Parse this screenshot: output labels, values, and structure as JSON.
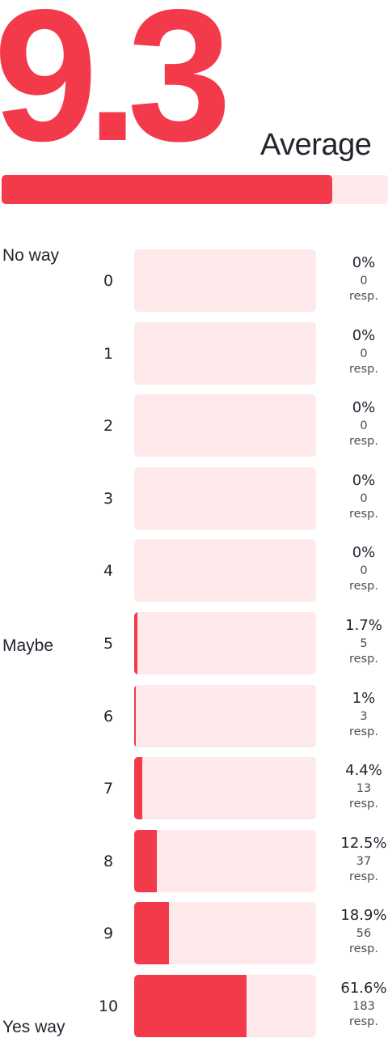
{
  "average": {
    "value": "9.3",
    "label": "Average",
    "fraction": 0.855
  },
  "anchors": {
    "low": "No way",
    "mid": "Maybe",
    "high": "Yes way"
  },
  "resp_suffix": "resp.",
  "colors": {
    "accent": "#f23a4a",
    "track": "#fde9ea",
    "text": "#23242f"
  },
  "chart_data": {
    "type": "bar",
    "orientation": "horizontal",
    "title": "",
    "xlabel": "",
    "ylabel": "",
    "xlim": [
      0,
      100
    ],
    "categories": [
      "0",
      "1",
      "2",
      "3",
      "4",
      "5",
      "6",
      "7",
      "8",
      "9",
      "10"
    ],
    "values": [
      0,
      0,
      0,
      0,
      0,
      1.7,
      1,
      4.4,
      12.5,
      18.9,
      61.6
    ],
    "percent_labels": [
      "0%",
      "0%",
      "0%",
      "0%",
      "0%",
      "1.7%",
      "1%",
      "4.4%",
      "12.5%",
      "18.9%",
      "61.6%"
    ],
    "responses": [
      0,
      0,
      0,
      0,
      0,
      5,
      3,
      13,
      37,
      56,
      183
    ],
    "grid": false,
    "legend": "none"
  }
}
